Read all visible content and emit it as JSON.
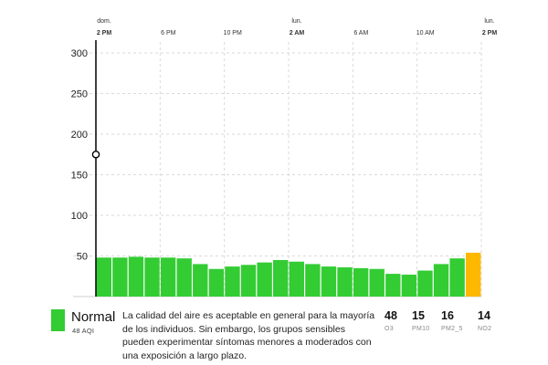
{
  "time_axis": [
    {
      "day": "dom.",
      "time": "2 PM"
    },
    {
      "day": "",
      "time": "6 PM"
    },
    {
      "day": "",
      "time": "10 PM"
    },
    {
      "day": "lun.",
      "time": "2 AM"
    },
    {
      "day": "",
      "time": "6 AM"
    },
    {
      "day": "",
      "time": "10 AM"
    },
    {
      "day": "lun.",
      "time": "2 PM"
    }
  ],
  "chart_data": {
    "type": "bar",
    "title": "",
    "xlabel": "",
    "ylabel": "",
    "ylim": [
      0,
      300
    ],
    "yticks": [
      50,
      100,
      150,
      200,
      250,
      300
    ],
    "grid": true,
    "cursor_value": 175,
    "values": [
      48,
      48,
      49,
      48,
      48,
      47,
      40,
      34,
      37,
      39,
      42,
      45,
      43,
      40,
      37,
      36,
      35,
      34,
      28,
      27,
      32,
      40,
      47,
      54
    ],
    "bar_colors": [
      "#33cc33",
      "#33cc33",
      "#33cc33",
      "#33cc33",
      "#33cc33",
      "#33cc33",
      "#33cc33",
      "#33cc33",
      "#33cc33",
      "#33cc33",
      "#33cc33",
      "#33cc33",
      "#33cc33",
      "#33cc33",
      "#33cc33",
      "#33cc33",
      "#33cc33",
      "#33cc33",
      "#33cc33",
      "#33cc33",
      "#33cc33",
      "#33cc33",
      "#33cc33",
      "#ffb800"
    ]
  },
  "status": {
    "label": "Normal",
    "aqi_text": "48 AQI",
    "color": "#33cc33",
    "description": "La calidad del aire es aceptable en general para la mayoría de los individuos. Sin embargo, los grupos sensibles pueden experimentar síntomas menores a moderados con una exposición a largo plazo."
  },
  "pollutants": [
    {
      "value": "48",
      "name": "O3"
    },
    {
      "value": "15",
      "name": "PM10"
    },
    {
      "value": "16",
      "name": "PM2_5"
    },
    {
      "value": "14",
      "name": "NO2"
    }
  ]
}
